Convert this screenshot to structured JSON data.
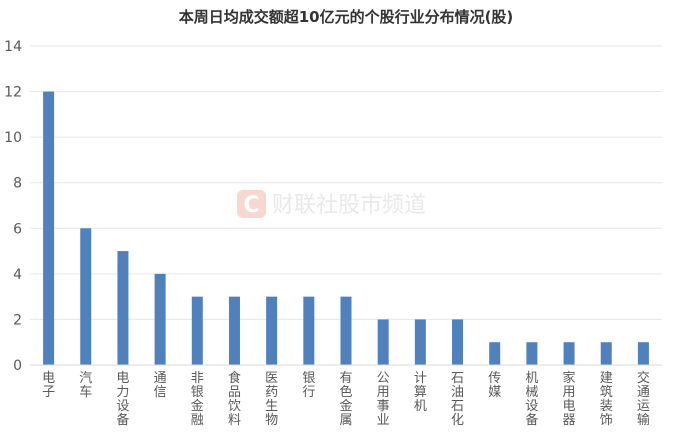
{
  "chart_data": {
    "type": "bar",
    "title": "本周日均成交额超10亿元的个股行业分布情况(股)",
    "categories": [
      "电子",
      "汽车",
      "电力设备",
      "通信",
      "非银金融",
      "食品饮料",
      "医药生物",
      "银行",
      "有色金属",
      "公用事业",
      "计算机",
      "石油石化",
      "传媒",
      "机械设备",
      "家用电器",
      "建筑装饰",
      "交通运输"
    ],
    "values": [
      12,
      6,
      5,
      4,
      3,
      3,
      3,
      3,
      3,
      2,
      2,
      2,
      1,
      1,
      1,
      1,
      1
    ],
    "ylim": [
      0,
      14
    ],
    "yticks": [
      0,
      2,
      4,
      6,
      8,
      10,
      12,
      14
    ],
    "grid": true,
    "bar_color": "#4f81bd"
  },
  "watermark": {
    "logo_letter": "C",
    "text": "财联社股市频道",
    "logo_color": "#f8d7d0"
  }
}
